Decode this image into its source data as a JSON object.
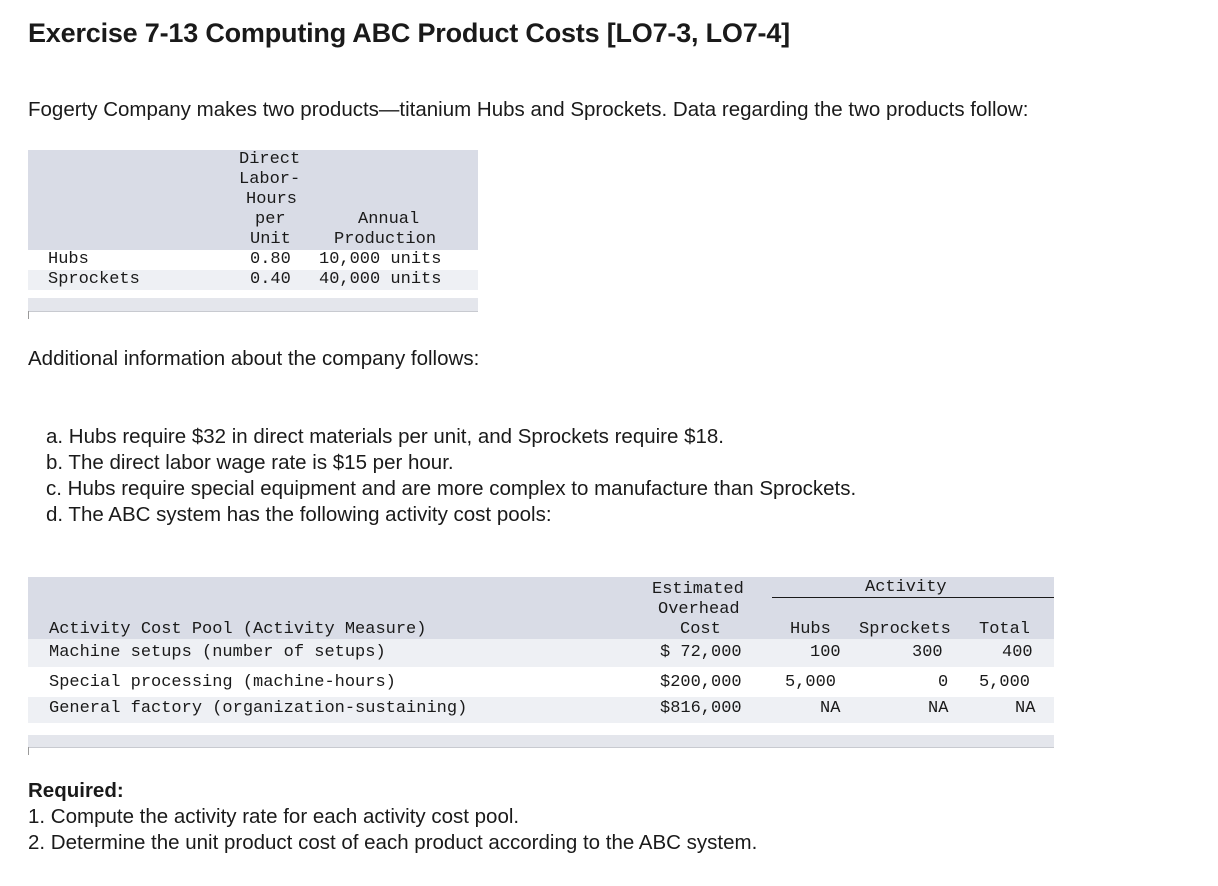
{
  "title": "Exercise 7-13 Computing ABC Product Costs [LO7-3, LO7-4]",
  "intro": "Fogerty Company makes two products—titanium Hubs and Sprockets. Data regarding the two products follow:",
  "table1": {
    "headers": {
      "dlh": [
        "Direct",
        "Labor-",
        "Hours",
        "per",
        "Unit"
      ],
      "annual": [
        "Annual",
        "Production"
      ]
    },
    "rows": [
      {
        "name": "Hubs",
        "dlh": "0.80",
        "annual": "10,000 units"
      },
      {
        "name": "Sprockets",
        "dlh": "0.40",
        "annual": "40,000 units"
      }
    ]
  },
  "additional": "Additional information about the company follows:",
  "list": [
    "a. Hubs require $32 in direct materials per unit, and Sprockets require $18.",
    "b. The direct labor wage rate is $15 per hour.",
    "c. Hubs require special equipment and are more complex to manufacture than Sprockets.",
    "d. The ABC system has the following activity cost pools:"
  ],
  "table2": {
    "headers": {
      "pool": "Activity Cost Pool (Activity Measure)",
      "cost": [
        "Estimated",
        "Overhead",
        "Cost"
      ],
      "activity": "Activity",
      "hubs": "Hubs",
      "sprockets": "Sprockets",
      "total": "Total"
    },
    "rows": [
      {
        "pool": "Machine setups (number of setups)",
        "cost": "$ 72,000",
        "hubs": "100",
        "sprockets": "300",
        "total": "400"
      },
      {
        "pool": "Special processing (machine-hours)",
        "cost": "$200,000",
        "hubs": "5,000",
        "sprockets": "0",
        "total": "5,000"
      },
      {
        "pool": "General factory (organization-sustaining)",
        "cost": "$816,000",
        "hubs": "NA",
        "sprockets": "NA",
        "total": "NA"
      }
    ]
  },
  "required": {
    "label": "Required:",
    "items": [
      "1. Compute the activity rate for each activity cost pool.",
      "2. Determine the unit product cost of each product according to the ABC system."
    ]
  }
}
